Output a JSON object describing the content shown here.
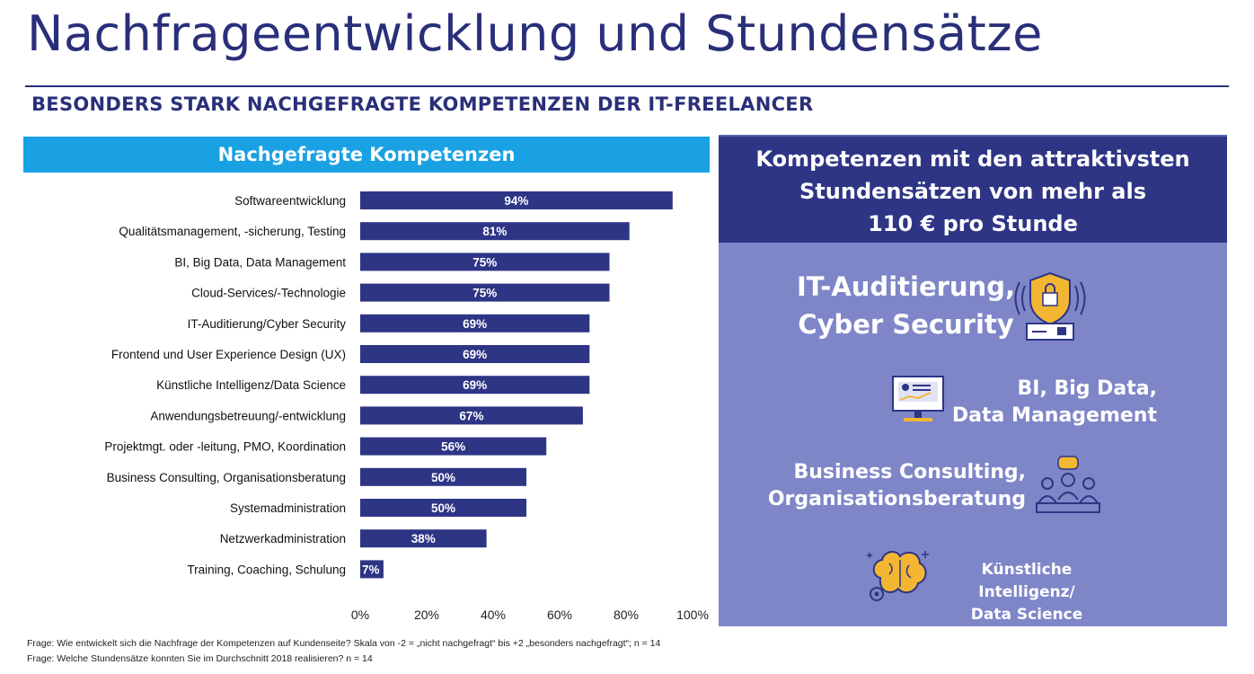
{
  "header": {
    "title": "Nachfrageentwicklung und Stundensätze",
    "subtitle": "BESONDERS STARK NACHGEFRAGTE KOMPETENZEN DER IT-FREELANCER"
  },
  "chart_data": {
    "type": "bar",
    "orientation": "horizontal",
    "title": "Nachgefragte Kompetenzen",
    "categories": [
      "Softwareentwicklung",
      "Qualitätsmanagement, -sicherung, Testing",
      "BI, Big Data, Data Management",
      "Cloud-Services/-Technologie",
      "IT-Auditierung/Cyber Security",
      "Frontend und User Experience Design (UX)",
      "Künstliche Intelligenz/Data Science",
      "Anwendungsbetreuung/-entwicklung",
      "Projektmgt. oder -leitung, PMO, Koordination",
      "Business Consulting, Organisationsberatung",
      "Systemadministration",
      "Netzwerkadministration",
      "Training, Coaching, Schulung"
    ],
    "values": [
      94,
      81,
      75,
      75,
      69,
      69,
      69,
      67,
      56,
      50,
      50,
      38,
      7
    ],
    "value_labels": [
      "94%",
      "81%",
      "75%",
      "75%",
      "69%",
      "69%",
      "69%",
      "67%",
      "56%",
      "50%",
      "50%",
      "38%",
      "7%"
    ],
    "x_ticks": [
      "0%",
      "20%",
      "40%",
      "60%",
      "80%",
      "100%"
    ],
    "xlim": [
      0,
      100
    ],
    "grid": false,
    "colors": {
      "bar": "#2e3585",
      "label": "#ffffff",
      "header": "#1aa1e3"
    }
  },
  "right_panel": {
    "header_lines": [
      "Kompetenzen mit den attraktivsten",
      "Stundensätzen von mehr als",
      "110 € pro Stunde"
    ],
    "items": [
      {
        "lines": [
          "IT-Auditierung,",
          "Cyber Security"
        ],
        "icon": "security-shield-icon"
      },
      {
        "lines": [
          "BI, Big Data,",
          "Data Management"
        ],
        "icon": "monitor-dashboard-icon"
      },
      {
        "lines": [
          "Business Consulting,",
          "Organisationsberatung"
        ],
        "icon": "meeting-people-icon"
      },
      {
        "lines": [
          "Künstliche Intelligenz/",
          "Data Science"
        ],
        "icon": "brain-gears-icon"
      }
    ],
    "colors": {
      "panel": "#7e86c8",
      "header": "#2e3585",
      "icon_accent": "#f2b632"
    }
  },
  "footnotes": [
    "Frage: Wie entwickelt sich die Nachfrage der Kompetenzen auf Kundenseite? Skala von -2 = „nicht nachgefragt“ bis +2 „besonders nachgefragt“; n = 14",
    "Frage: Welche Stundensätze konnten Sie im Durchschnitt 2018 realisieren? n = 14"
  ]
}
